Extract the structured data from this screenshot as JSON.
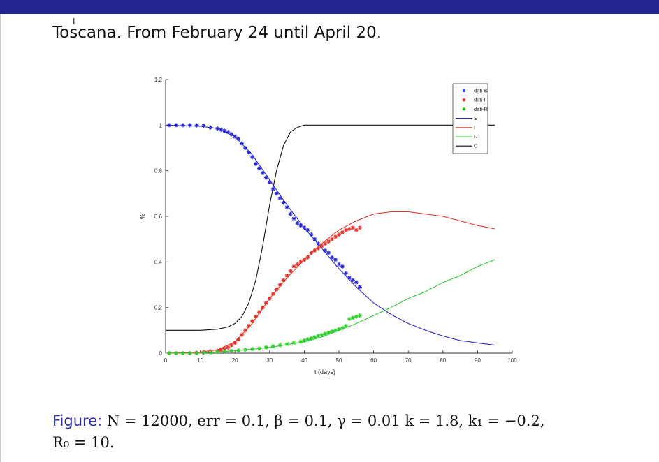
{
  "slide": {
    "title": "Toscana. From February 24 until April 20."
  },
  "caption": {
    "label": "Figure:",
    "line1": " N = 12000, err = 0.1, β = 0.1, γ = 0.01 k = 1.8, k₁ = −0.2,",
    "line2": "R₀ = 10."
  },
  "colors": {
    "top_bar": "#26248f",
    "S": "#2b2bd6",
    "I": "#e5342a",
    "R": "#2fcc2f",
    "C": "#111111"
  },
  "chart_data": {
    "type": "scatter",
    "xlabel": "t (days)",
    "ylabel": "%",
    "xlim": [
      0,
      100
    ],
    "ylim": [
      0,
      1.2
    ],
    "x_ticks": [
      "0",
      "10",
      "20",
      "30",
      "40",
      "50",
      "60",
      "70",
      "80",
      "90",
      "100"
    ],
    "y_ticks": [
      "0",
      "0.2",
      "0.4",
      "0.6",
      "0.8",
      "1",
      "1.2"
    ],
    "grid": false,
    "legend_position": "top-right",
    "legend": [
      "dati-S",
      "dati-I",
      "dati-R",
      "S",
      "I",
      "R",
      "C"
    ],
    "data_series": [
      {
        "name": "dati-S",
        "marker": "*",
        "x": [
          1,
          3,
          5,
          7,
          9,
          11,
          13,
          15,
          16,
          17,
          18,
          19,
          20,
          21,
          22,
          23,
          24,
          25,
          26,
          27,
          28,
          29,
          30,
          31,
          32,
          33,
          34,
          35,
          36,
          37,
          38,
          39,
          40,
          41,
          42,
          43,
          44,
          45,
          46,
          47,
          48,
          49,
          50,
          51,
          52,
          53,
          54,
          55,
          56
        ],
        "y": [
          1.0,
          1.0,
          1.0,
          1.0,
          0.999,
          0.998,
          0.99,
          0.985,
          0.98,
          0.975,
          0.97,
          0.96,
          0.95,
          0.94,
          0.92,
          0.9,
          0.88,
          0.86,
          0.83,
          0.81,
          0.79,
          0.77,
          0.75,
          0.72,
          0.7,
          0.68,
          0.66,
          0.64,
          0.61,
          0.59,
          0.57,
          0.56,
          0.55,
          0.54,
          0.52,
          0.5,
          0.48,
          0.47,
          0.45,
          0.44,
          0.42,
          0.41,
          0.39,
          0.38,
          0.35,
          0.33,
          0.32,
          0.31,
          0.29
        ]
      },
      {
        "name": "dati-I",
        "marker": "*",
        "x": [
          1,
          3,
          5,
          7,
          9,
          11,
          13,
          15,
          16,
          17,
          18,
          19,
          20,
          21,
          22,
          23,
          24,
          25,
          26,
          27,
          28,
          29,
          30,
          31,
          32,
          33,
          34,
          35,
          36,
          37,
          38,
          39,
          40,
          41,
          42,
          43,
          44,
          45,
          46,
          47,
          48,
          49,
          50,
          51,
          52,
          53,
          54,
          55,
          56
        ],
        "y": [
          0.0,
          0.0,
          0.0,
          0.0,
          0.002,
          0.005,
          0.008,
          0.01,
          0.015,
          0.02,
          0.025,
          0.035,
          0.045,
          0.06,
          0.08,
          0.1,
          0.12,
          0.14,
          0.16,
          0.18,
          0.2,
          0.22,
          0.24,
          0.26,
          0.28,
          0.3,
          0.32,
          0.34,
          0.36,
          0.38,
          0.39,
          0.4,
          0.41,
          0.42,
          0.44,
          0.45,
          0.46,
          0.47,
          0.48,
          0.49,
          0.5,
          0.51,
          0.52,
          0.53,
          0.54,
          0.545,
          0.55,
          0.54,
          0.55
        ]
      },
      {
        "name": "dati-R",
        "marker": "*",
        "x": [
          1,
          3,
          5,
          7,
          9,
          11,
          13,
          15,
          17,
          19,
          21,
          23,
          25,
          27,
          29,
          31,
          33,
          35,
          37,
          39,
          40,
          41,
          42,
          43,
          44,
          45,
          46,
          47,
          48,
          49,
          50,
          51,
          52,
          53,
          54,
          55,
          56
        ],
        "y": [
          0.0,
          0.0,
          0.0,
          0.0,
          0.0,
          0.002,
          0.003,
          0.005,
          0.008,
          0.01,
          0.012,
          0.015,
          0.018,
          0.02,
          0.025,
          0.03,
          0.035,
          0.04,
          0.045,
          0.05,
          0.055,
          0.06,
          0.065,
          0.07,
          0.075,
          0.08,
          0.085,
          0.09,
          0.095,
          0.1,
          0.105,
          0.11,
          0.12,
          0.15,
          0.155,
          0.16,
          0.165
        ]
      }
    ],
    "model_series": [
      {
        "name": "S",
        "x": [
          0,
          10,
          15,
          20,
          25,
          30,
          35,
          40,
          45,
          50,
          55,
          60,
          65,
          70,
          75,
          80,
          85,
          90,
          95
        ],
        "y": [
          1.0,
          0.995,
          0.985,
          0.95,
          0.87,
          0.76,
          0.65,
          0.55,
          0.46,
          0.37,
          0.29,
          0.22,
          0.17,
          0.13,
          0.1,
          0.075,
          0.055,
          0.045,
          0.035
        ]
      },
      {
        "name": "I",
        "x": [
          0,
          10,
          15,
          20,
          25,
          30,
          35,
          40,
          45,
          50,
          55,
          60,
          65,
          70,
          75,
          80,
          85,
          90,
          95
        ],
        "y": [
          0.0,
          0.005,
          0.015,
          0.05,
          0.13,
          0.24,
          0.33,
          0.41,
          0.48,
          0.54,
          0.58,
          0.61,
          0.62,
          0.62,
          0.61,
          0.6,
          0.58,
          0.56,
          0.545
        ]
      },
      {
        "name": "R",
        "x": [
          0,
          10,
          20,
          30,
          40,
          45,
          50,
          55,
          60,
          65,
          70,
          75,
          80,
          85,
          90,
          95
        ],
        "y": [
          0.0,
          0.001,
          0.01,
          0.025,
          0.05,
          0.07,
          0.1,
          0.13,
          0.165,
          0.2,
          0.24,
          0.27,
          0.31,
          0.34,
          0.38,
          0.41
        ]
      },
      {
        "name": "C",
        "x": [
          0,
          10,
          15,
          18,
          20,
          22,
          24,
          26,
          28,
          30,
          32,
          34,
          36,
          38,
          40,
          45,
          60,
          80,
          95
        ],
        "y": [
          0.1,
          0.1,
          0.105,
          0.115,
          0.13,
          0.16,
          0.22,
          0.32,
          0.47,
          0.65,
          0.8,
          0.91,
          0.97,
          0.99,
          1.0,
          1.0,
          1.0,
          1.0,
          1.0
        ]
      }
    ]
  }
}
